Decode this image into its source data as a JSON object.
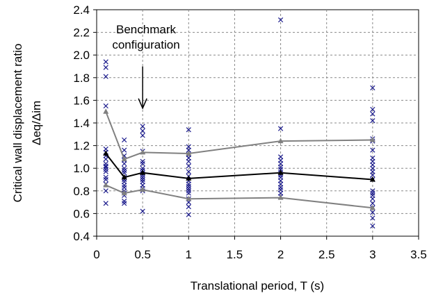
{
  "chart_data": {
    "type": "scatter",
    "xlabel": "Translational period, T (s)",
    "ylabel": "Critical wall displacement ratio",
    "ylabel2": "Δeq/Δim",
    "xlim": [
      0,
      3.5
    ],
    "ylim": [
      0.4,
      2.4
    ],
    "xticks": [
      0,
      0.5,
      1,
      1.5,
      2,
      2.5,
      3,
      3.5
    ],
    "xtick_labels": [
      "0",
      "0.5",
      "1",
      "1.5",
      "2",
      "2.5",
      "3",
      "3.5"
    ],
    "yticks": [
      0.4,
      0.6,
      0.8,
      1.0,
      1.2,
      1.4,
      1.6,
      1.8,
      2.0,
      2.2,
      2.4
    ],
    "ytick_labels": [
      "0.4",
      "0.6",
      "0.8",
      "1.0",
      "1.2",
      "1.4",
      "1.6",
      "1.8",
      "2.0",
      "2.2",
      "2.4"
    ],
    "grid": true,
    "annotation": {
      "lines": [
        "Benchmark",
        "configuration"
      ],
      "arrow_x": 0.5,
      "arrow_from_y": 1.9,
      "arrow_to_y": 1.53
    },
    "scatter_points": [
      {
        "x": 0.1,
        "y": [
          1.94,
          1.89,
          1.81,
          1.55,
          1.17,
          1.14,
          1.11,
          1.08,
          1.04,
          1.02,
          1.01,
          0.99,
          0.97,
          0.92,
          0.9,
          0.86,
          0.8,
          0.69
        ]
      },
      {
        "x": 0.3,
        "y": [
          1.25,
          1.16,
          1.11,
          1.07,
          1.04,
          1.0,
          0.98,
          0.96,
          0.92,
          0.9,
          0.88,
          0.85,
          0.83,
          0.8,
          0.78,
          0.76,
          0.71,
          0.69
        ]
      },
      {
        "x": 0.5,
        "y": [
          1.37,
          1.33,
          1.29,
          1.15,
          1.06,
          1.04,
          1.0,
          0.98,
          0.96,
          0.94,
          0.92,
          0.9,
          0.88,
          0.85,
          0.82,
          0.8,
          0.62
        ]
      },
      {
        "x": 1.0,
        "y": [
          1.34,
          1.19,
          1.16,
          1.12,
          1.09,
          1.06,
          1.02,
          0.97,
          0.93,
          0.89,
          0.86,
          0.84,
          0.82,
          0.8,
          0.78,
          0.73,
          0.7,
          0.66,
          0.59
        ]
      },
      {
        "x": 2.0,
        "y": [
          2.31,
          1.35,
          1.1,
          1.07,
          1.04,
          1.01,
          0.99,
          0.96,
          0.94,
          0.92,
          0.89,
          0.86,
          0.83,
          0.81,
          0.78,
          0.75
        ]
      },
      {
        "x": 3.0,
        "y": [
          1.71,
          1.52,
          1.48,
          1.42,
          1.26,
          1.24,
          1.16,
          1.09,
          1.06,
          1.03,
          1.0,
          0.97,
          0.94,
          0.9,
          0.8,
          0.78,
          0.76,
          0.73,
          0.69,
          0.65,
          0.61,
          0.56,
          0.49
        ]
      }
    ],
    "series": [
      {
        "x": [
          0.1,
          0.3,
          0.5,
          1.0,
          2.0,
          3.0
        ],
        "values": [
          1.5,
          1.08,
          1.14,
          1.13,
          1.24,
          1.25
        ],
        "color": "#808080",
        "marker": "triangle"
      },
      {
        "x": [
          0.1,
          0.3,
          0.5,
          1.0,
          2.0,
          3.0
        ],
        "values": [
          1.13,
          0.92,
          0.96,
          0.91,
          0.96,
          0.9
        ],
        "color": "#000000",
        "marker": "triangle"
      },
      {
        "x": [
          0.1,
          0.3,
          0.5,
          1.0,
          2.0,
          3.0
        ],
        "values": [
          0.85,
          0.78,
          0.81,
          0.73,
          0.74,
          0.65
        ],
        "color": "#808080",
        "marker": "triangle"
      }
    ],
    "colors": {
      "scatter": "#1a1a8c",
      "grid": "#888888"
    }
  }
}
